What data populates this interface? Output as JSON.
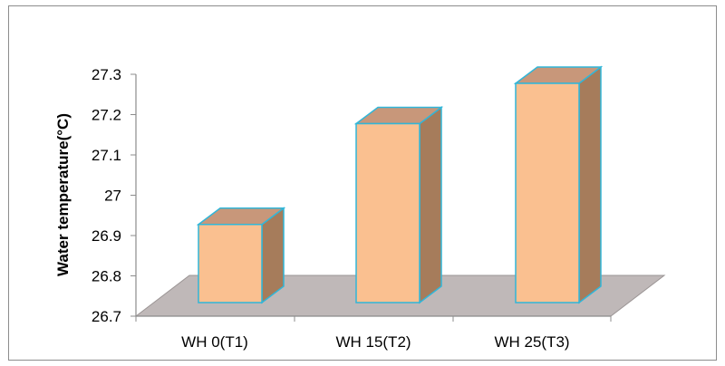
{
  "chart_data": {
    "type": "bar",
    "style": "3d-column",
    "title": "",
    "xlabel": "",
    "ylabel": "Water temperature(°C)",
    "categories": [
      "WH 0(T1)",
      "WH 15(T2)",
      "WH 25(T3)"
    ],
    "values": [
      26.95,
      27.2,
      27.3
    ],
    "ylim": [
      26.7,
      27.3
    ],
    "yticks": [
      "26.7",
      "26.8",
      "26.9",
      "27",
      "27.1",
      "27.2",
      "27.3"
    ],
    "grid": false,
    "legend": "none",
    "colors": {
      "bar_front": "#fac090",
      "bar_top": "#c8977a",
      "bar_side": "#a67c5b",
      "bar_edge": "#31b6d8",
      "floor": "#bfb8b8",
      "axis": "#8c8c8c"
    }
  }
}
